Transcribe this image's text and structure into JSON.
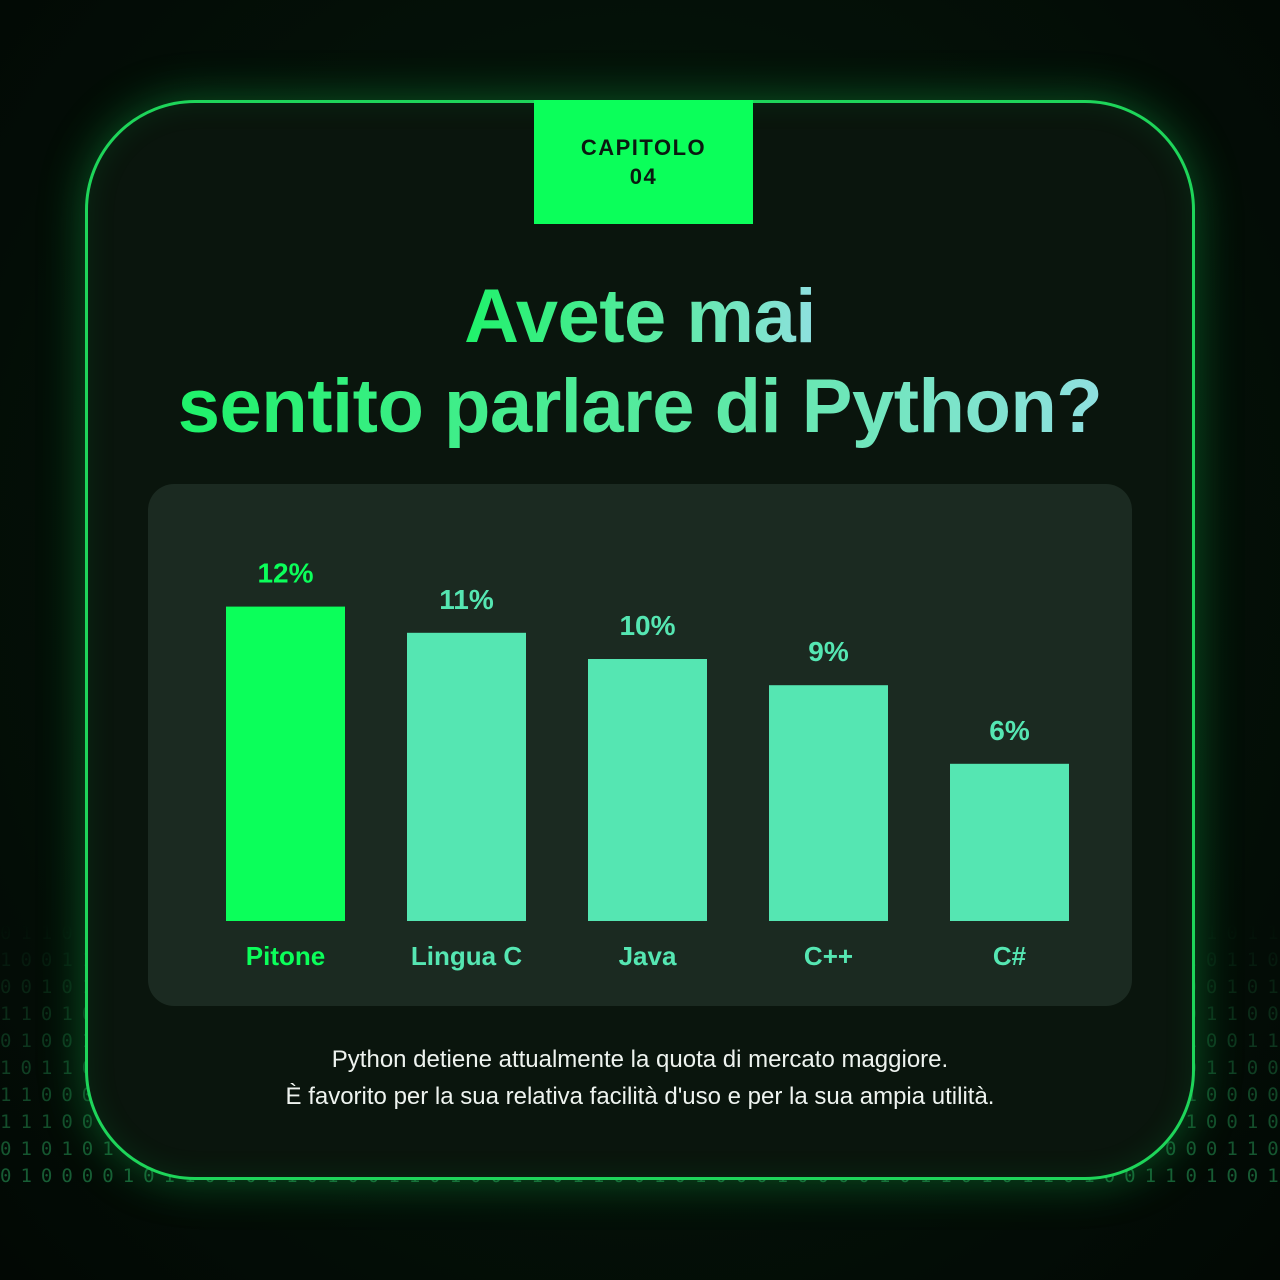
{
  "chapter": {
    "line1": "CAPITOLO",
    "line2": "04"
  },
  "title": {
    "line1": "Avete mai",
    "line2": "sentito parlare di Python?"
  },
  "chart_data": {
    "type": "bar",
    "categories": [
      "Pitone",
      "Lingua C",
      "Java",
      "C++",
      "C#"
    ],
    "values": [
      12,
      11,
      10,
      9,
      6
    ],
    "data_labels": [
      "12%",
      "11%",
      "10%",
      "9%",
      "6%"
    ],
    "title": "",
    "xlabel": "",
    "ylabel": "",
    "ylim": [
      0,
      12
    ],
    "grid": false,
    "legend": "none",
    "colors": {
      "highlight": "#0bff5a",
      "default": "#55e6b2"
    }
  },
  "caption": {
    "line1": "Python detiene attualmente la quota di mercato maggiore.",
    "line2": "È favorito per la sua relativa facilità d'uso e per la sua ampia utilità."
  },
  "background_binary": [
    "0 1 1 0 1 0 0 1 1 0 1 1 0 0 1 0 1 0 0 1 1 0 1 0 1 1 0 0 1 0 1 1 0 1 0 0 1",
    "1 0 0 1 1 0 1 0 0 1 0 1 1 0 0 1 1 0 1 0 0 1 0 1 1 0 1 0 0 1 1 0 0 1 0 1 1",
    "0 0 1 0 1 1 0 1 0 0 1 0 0 1 1 0 0 1 0 1 1 0 0 1 0 1 0 1 1 0 0 1 0 1 1 0 0",
    "1 1 0 1 0 0 1 0 1 1 0 1 0 1 0 0 1 1 0 0 1 0 1 1 0 0 1 0 1 0 1 1 0 0 1 0 1",
    "0 1 0 0 1 1 0 1 1 0 0 1 1 0 1 0 0 0 1 1 0 1 0 0 1 1 0 1 0 0 1 0 1 1 0 1 0",
    "1 0 1 1 0 0 1 0 0 1 1 0 0 1 0 1 1 0 0 1 0 0 1 1 0 0 1 1 0 1 0 0 1 0 1 1 0",
    "1 1 0 0 0 1 1 1 0 1 0 0 1 0 0 1 0 0 0 0 0 1 0 0 0 0 1 1 0 1 0 1 1 1 0 1 1",
    "1 1 1 0 0 1 1 0 1 0 0 0 0 1 1 0 1 1 1 1 0 1 0 0 1 0 1 0 1 0 1 1 0 1 0 0 1",
    "0 1 0 1 0 1 0 1 0 0 0 1 1 0 1 0 0 1 1 0 0 0 0 1 1 0 0 0 1 1 0 0 0 0 1 1 0",
    "0 1 0 0 0 0 1 0 1 1 0 1 0 1 1 0 1 0 0 1 1 0 1 0 0 1 1 0 1 1 0 0 1 0 1 0 0"
  ]
}
